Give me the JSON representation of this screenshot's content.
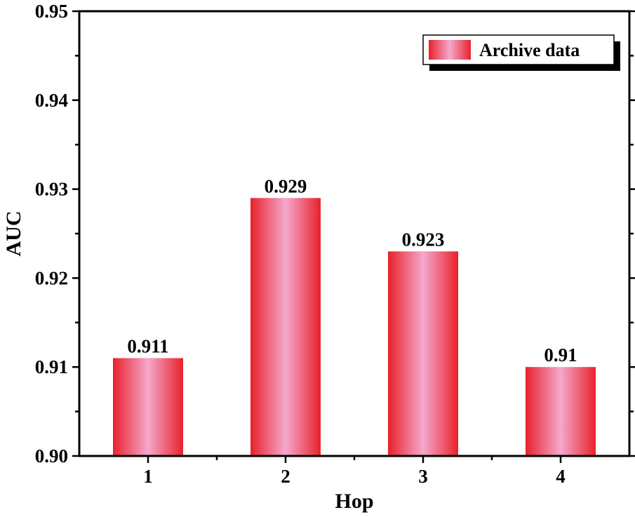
{
  "chart_data": {
    "type": "bar",
    "title": "",
    "xlabel": "Hop",
    "ylabel": "AUC",
    "categories": [
      "1",
      "2",
      "3",
      "4"
    ],
    "series": [
      {
        "name": "Archive data",
        "values": [
          0.911,
          0.929,
          0.923,
          0.91
        ],
        "value_labels": [
          "0.911",
          "0.929",
          "0.923",
          "0.91"
        ]
      }
    ],
    "ylim": [
      0.9,
      0.95
    ],
    "yticks": [
      0.9,
      0.91,
      0.92,
      0.93,
      0.94,
      0.95
    ],
    "ytick_labels": [
      "0.90",
      "0.91",
      "0.92",
      "0.93",
      "0.94",
      "0.95"
    ],
    "minor_ytick_step": 0.005,
    "grid": false,
    "legend_position": "top-right",
    "colors": {
      "bar_edge": "#e8212b",
      "bar_center": "#f5a8cc",
      "axis": "#000000",
      "text": "#000000"
    }
  }
}
